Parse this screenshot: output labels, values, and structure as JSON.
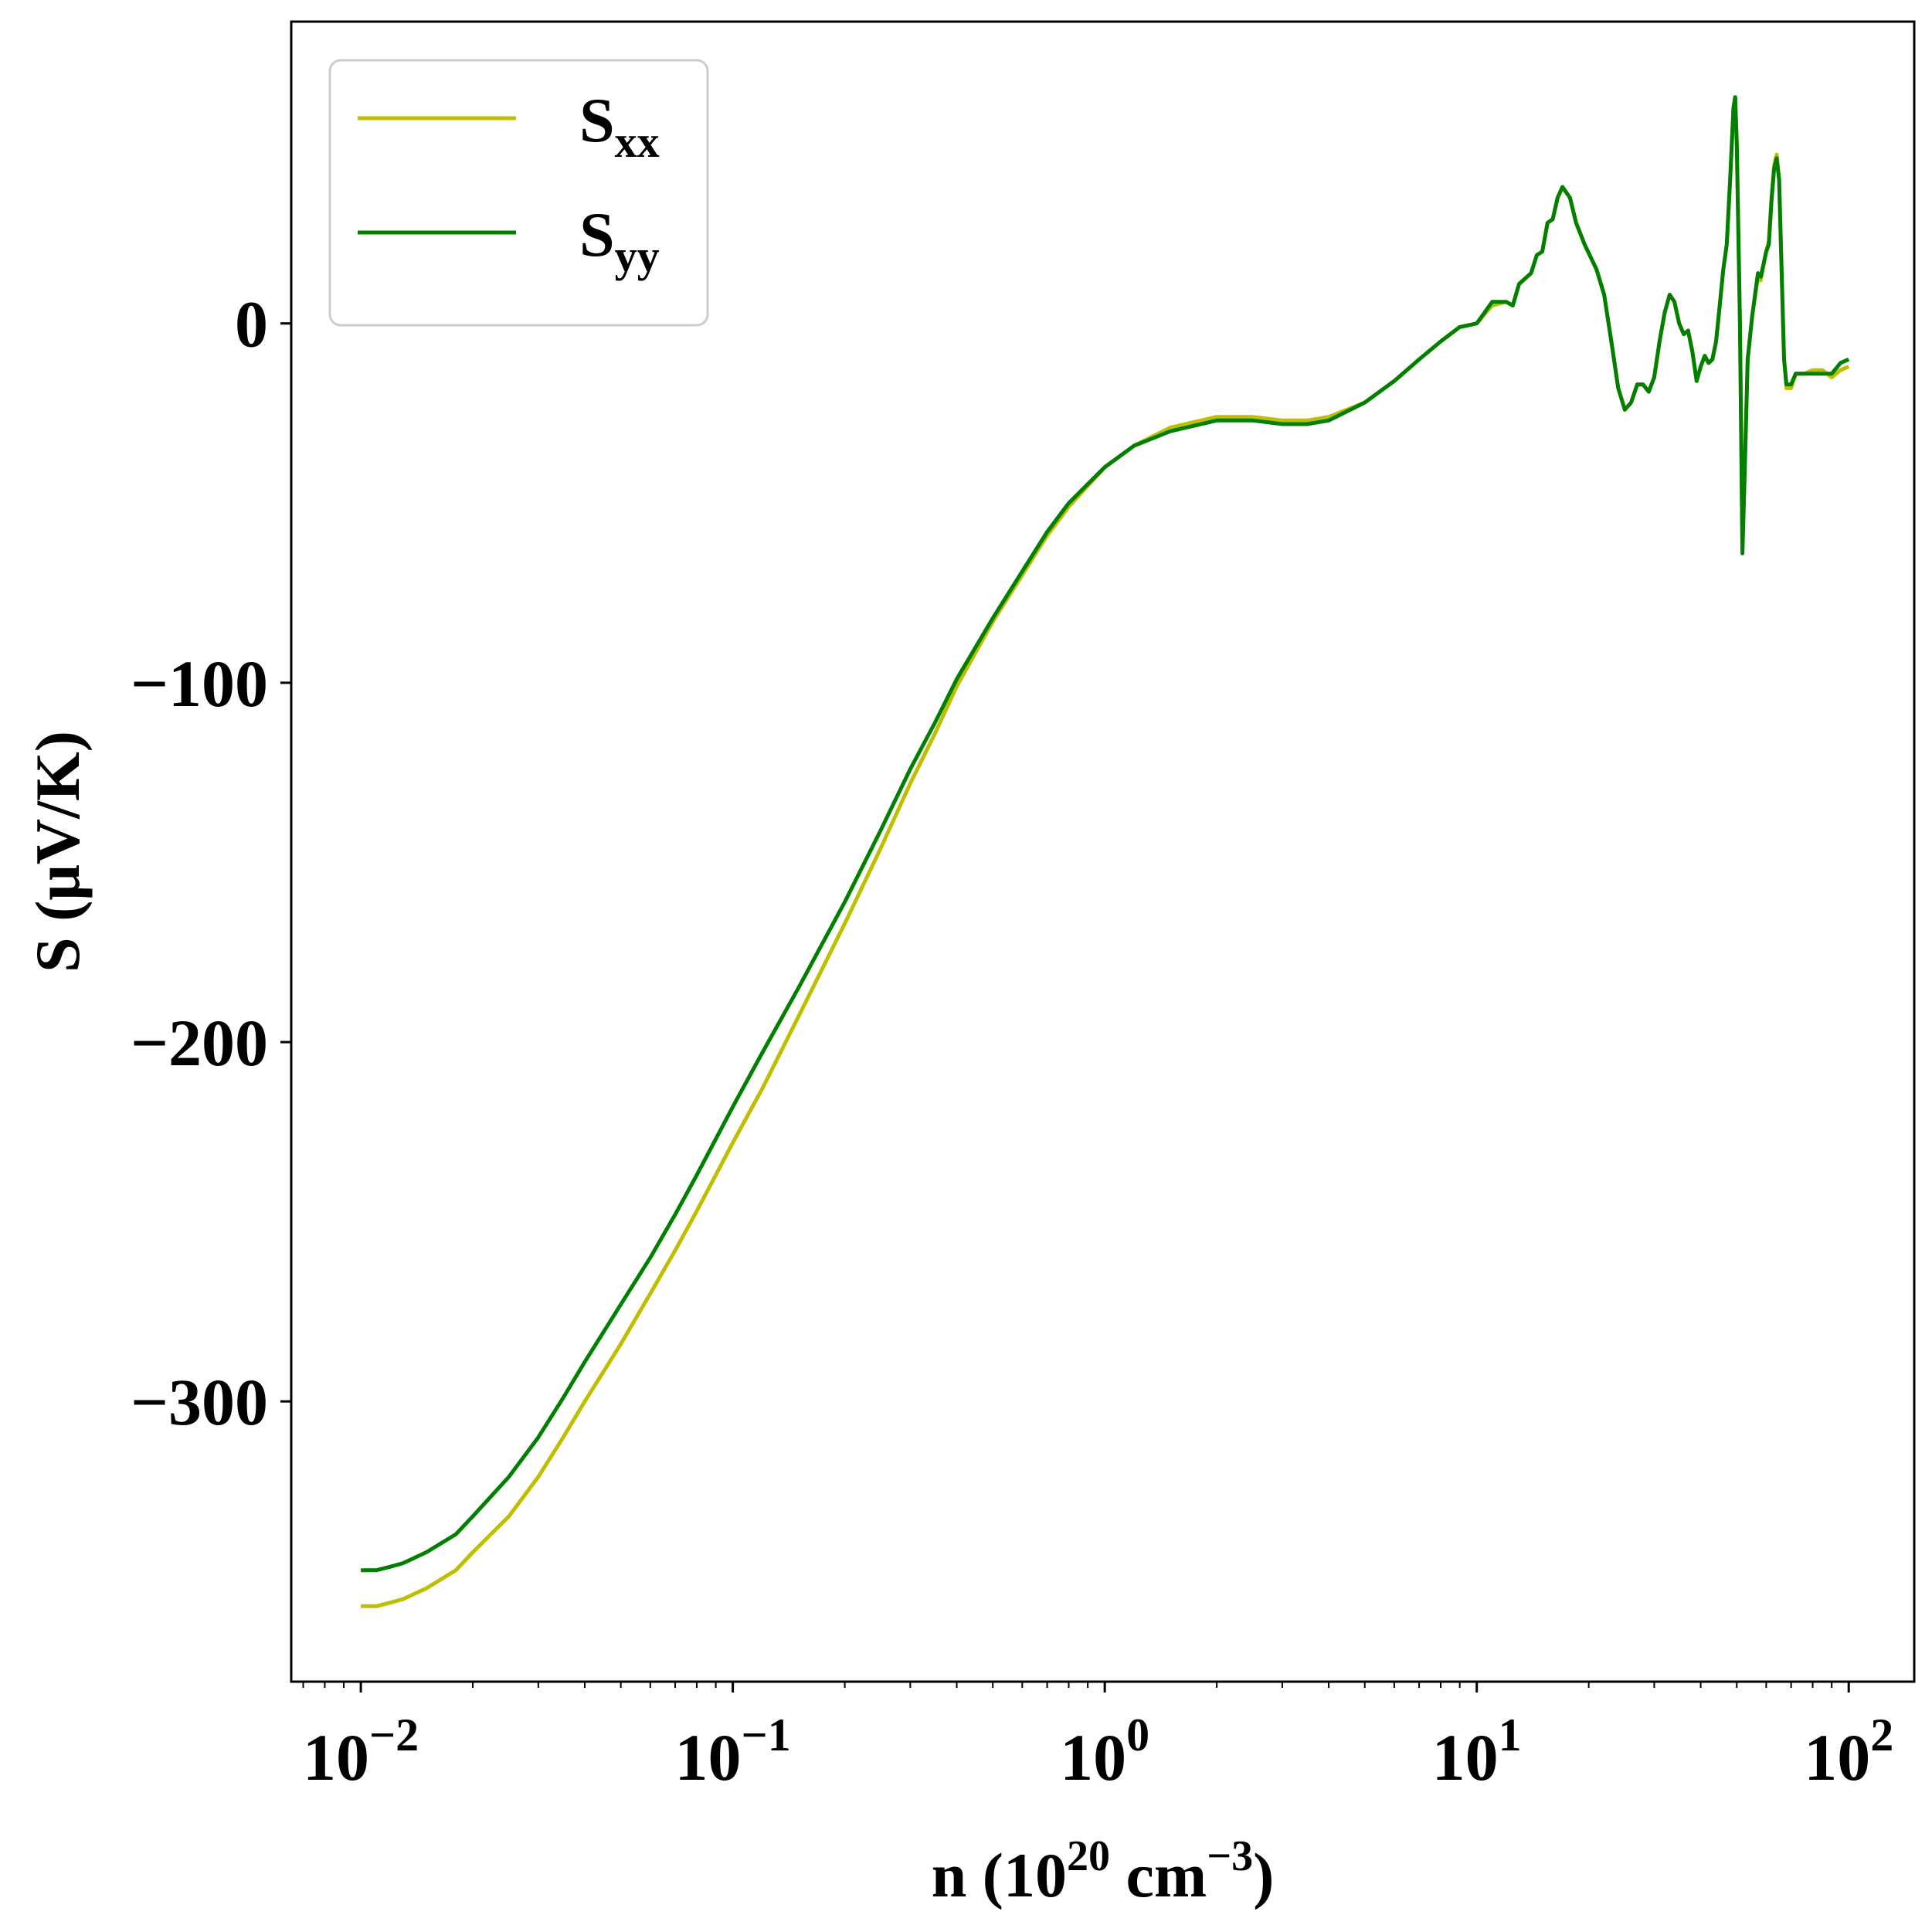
{
  "chart_data": {
    "type": "line",
    "xscale": "log",
    "xlim": [
      0.0065,
      150
    ],
    "ylim": [
      -378,
      84
    ],
    "xlabel": {
      "prefix": "n (10",
      "exp": "20",
      "middle": " cm",
      "exp2": "−3",
      "suffix": ")"
    },
    "ylabel": "S (μV/K)",
    "x_ticks": [
      {
        "value": 0.01,
        "base": "10",
        "exp": "−2"
      },
      {
        "value": 0.1,
        "base": "10",
        "exp": "−1"
      },
      {
        "value": 1,
        "base": "10",
        "exp": "0"
      },
      {
        "value": 10,
        "base": "10",
        "exp": "1"
      },
      {
        "value": 100,
        "base": "10",
        "exp": "2"
      }
    ],
    "y_ticks": [
      {
        "value": 0,
        "label": "0"
      },
      {
        "value": -100,
        "label": "−100"
      },
      {
        "value": -200,
        "label": "−200"
      },
      {
        "value": -300,
        "label": "−300"
      }
    ],
    "grid": false,
    "legend_position": "top-left",
    "series": [
      {
        "name": "S",
        "subscript": "xx",
        "color": "#bfbf00",
        "points": [
          [
            0.01,
            -357
          ],
          [
            0.011,
            -357
          ],
          [
            0.012,
            -356
          ],
          [
            0.013,
            -355
          ],
          [
            0.015,
            -352
          ],
          [
            0.018,
            -347
          ],
          [
            0.02,
            -342
          ],
          [
            0.025,
            -332
          ],
          [
            0.03,
            -321
          ],
          [
            0.035,
            -310
          ],
          [
            0.04,
            -300
          ],
          [
            0.05,
            -284
          ],
          [
            0.06,
            -270
          ],
          [
            0.07,
            -258
          ],
          [
            0.08,
            -247
          ],
          [
            0.09,
            -237
          ],
          [
            0.1,
            -228
          ],
          [
            0.12,
            -213
          ],
          [
            0.15,
            -193
          ],
          [
            0.2,
            -167
          ],
          [
            0.25,
            -146
          ],
          [
            0.3,
            -128
          ],
          [
            0.35,
            -114
          ],
          [
            0.4,
            -101
          ],
          [
            0.5,
            -83
          ],
          [
            0.6,
            -70
          ],
          [
            0.7,
            -59
          ],
          [
            0.8,
            -51
          ],
          [
            1.0,
            -40
          ],
          [
            1.2,
            -34
          ],
          [
            1.5,
            -29
          ],
          [
            2.0,
            -26
          ],
          [
            2.5,
            -26
          ],
          [
            3.0,
            -27
          ],
          [
            3.5,
            -27
          ],
          [
            4.0,
            -26
          ],
          [
            5.0,
            -22
          ],
          [
            6.0,
            -16
          ],
          [
            7.0,
            -10
          ],
          [
            8.0,
            -5
          ],
          [
            9.0,
            -1
          ],
          [
            10.0,
            0
          ],
          [
            11.0,
            5
          ],
          [
            12.0,
            6
          ],
          [
            12.5,
            5
          ],
          [
            13.0,
            11
          ],
          [
            14.0,
            14
          ],
          [
            14.5,
            19
          ],
          [
            15.0,
            20
          ],
          [
            15.5,
            28
          ],
          [
            16.0,
            29
          ],
          [
            16.5,
            35
          ],
          [
            17.0,
            38
          ],
          [
            17.8,
            35
          ],
          [
            18.5,
            28
          ],
          [
            19.5,
            22
          ],
          [
            21.0,
            15
          ],
          [
            22.0,
            8
          ],
          [
            23.0,
            -5
          ],
          [
            24.0,
            -18
          ],
          [
            25.0,
            -24
          ],
          [
            26.0,
            -22
          ],
          [
            27.0,
            -17
          ],
          [
            28.0,
            -17
          ],
          [
            29.0,
            -19
          ],
          [
            30.0,
            -15
          ],
          [
            31.0,
            -5
          ],
          [
            32.0,
            3
          ],
          [
            33.0,
            8
          ],
          [
            34.0,
            6
          ],
          [
            35.0,
            0
          ],
          [
            36.0,
            -3
          ],
          [
            37.0,
            -2
          ],
          [
            38.0,
            -8
          ],
          [
            39.0,
            -16
          ],
          [
            40.0,
            -12
          ],
          [
            41.0,
            -9
          ],
          [
            42.0,
            -11
          ],
          [
            43.0,
            -10
          ],
          [
            44.0,
            -5
          ],
          [
            45.0,
            5
          ],
          [
            46.0,
            15
          ],
          [
            47.0,
            22
          ],
          [
            48.0,
            40
          ],
          [
            49.0,
            60
          ],
          [
            49.5,
            63
          ],
          [
            50.0,
            50
          ],
          [
            51.0,
            0
          ],
          [
            51.8,
            -62
          ],
          [
            52.5,
            -40
          ],
          [
            53.5,
            -10
          ],
          [
            55.0,
            2
          ],
          [
            57.0,
            13
          ],
          [
            58.0,
            12
          ],
          [
            60.0,
            20
          ],
          [
            61.0,
            23
          ],
          [
            62.0,
            35
          ],
          [
            63.0,
            44
          ],
          [
            64.0,
            47
          ],
          [
            65.0,
            40
          ],
          [
            66.0,
            15
          ],
          [
            67.0,
            -10
          ],
          [
            68.0,
            -18
          ],
          [
            70.0,
            -18
          ],
          [
            72.0,
            -14
          ],
          [
            76.0,
            -14
          ],
          [
            80.0,
            -13
          ],
          [
            85.0,
            -13
          ],
          [
            90.0,
            -15
          ],
          [
            95.0,
            -13
          ],
          [
            100.0,
            -12
          ]
        ]
      },
      {
        "name": "S",
        "subscript": "yy",
        "color": "#007f00",
        "points": [
          [
            0.01,
            -347
          ],
          [
            0.011,
            -347
          ],
          [
            0.012,
            -346
          ],
          [
            0.013,
            -345
          ],
          [
            0.015,
            -342
          ],
          [
            0.018,
            -337
          ],
          [
            0.02,
            -332
          ],
          [
            0.025,
            -321
          ],
          [
            0.03,
            -310
          ],
          [
            0.035,
            -299
          ],
          [
            0.04,
            -289
          ],
          [
            0.05,
            -273
          ],
          [
            0.06,
            -260
          ],
          [
            0.07,
            -248
          ],
          [
            0.08,
            -237
          ],
          [
            0.09,
            -227
          ],
          [
            0.1,
            -218
          ],
          [
            0.12,
            -203
          ],
          [
            0.15,
            -185
          ],
          [
            0.2,
            -161
          ],
          [
            0.25,
            -141
          ],
          [
            0.3,
            -124
          ],
          [
            0.35,
            -111
          ],
          [
            0.4,
            -99
          ],
          [
            0.5,
            -82
          ],
          [
            0.6,
            -69
          ],
          [
            0.7,
            -58
          ],
          [
            0.8,
            -50
          ],
          [
            1.0,
            -40
          ],
          [
            1.2,
            -34
          ],
          [
            1.5,
            -30
          ],
          [
            2.0,
            -27
          ],
          [
            2.5,
            -27
          ],
          [
            3.0,
            -28
          ],
          [
            3.5,
            -28
          ],
          [
            4.0,
            -27
          ],
          [
            5.0,
            -22
          ],
          [
            6.0,
            -16
          ],
          [
            7.0,
            -10
          ],
          [
            8.0,
            -5
          ],
          [
            9.0,
            -1
          ],
          [
            10.0,
            0
          ],
          [
            11.0,
            6
          ],
          [
            12.0,
            6
          ],
          [
            12.5,
            5
          ],
          [
            13.0,
            11
          ],
          [
            14.0,
            14
          ],
          [
            14.5,
            19
          ],
          [
            15.0,
            20
          ],
          [
            15.5,
            28
          ],
          [
            16.0,
            29
          ],
          [
            16.5,
            35
          ],
          [
            17.0,
            38
          ],
          [
            17.8,
            35
          ],
          [
            18.5,
            28
          ],
          [
            19.5,
            22
          ],
          [
            21.0,
            15
          ],
          [
            22.0,
            8
          ],
          [
            23.0,
            -5
          ],
          [
            24.0,
            -18
          ],
          [
            25.0,
            -24
          ],
          [
            26.0,
            -22
          ],
          [
            27.0,
            -17
          ],
          [
            28.0,
            -17
          ],
          [
            29.0,
            -19
          ],
          [
            30.0,
            -15
          ],
          [
            31.0,
            -5
          ],
          [
            32.0,
            3
          ],
          [
            33.0,
            8
          ],
          [
            34.0,
            6
          ],
          [
            35.0,
            0
          ],
          [
            36.0,
            -3
          ],
          [
            37.0,
            -2
          ],
          [
            38.0,
            -8
          ],
          [
            39.0,
            -16
          ],
          [
            40.0,
            -12
          ],
          [
            41.0,
            -9
          ],
          [
            42.0,
            -11
          ],
          [
            43.0,
            -10
          ],
          [
            44.0,
            -5
          ],
          [
            45.0,
            5
          ],
          [
            46.0,
            15
          ],
          [
            47.0,
            22
          ],
          [
            48.0,
            40
          ],
          [
            49.0,
            60
          ],
          [
            49.5,
            63
          ],
          [
            50.0,
            50
          ],
          [
            51.0,
            0
          ],
          [
            51.8,
            -64
          ],
          [
            52.5,
            -42
          ],
          [
            53.5,
            -10
          ],
          [
            55.0,
            2
          ],
          [
            57.0,
            14
          ],
          [
            58.0,
            13
          ],
          [
            60.0,
            20
          ],
          [
            61.0,
            22
          ],
          [
            62.0,
            34
          ],
          [
            63.0,
            43
          ],
          [
            64.0,
            46
          ],
          [
            65.0,
            40
          ],
          [
            66.0,
            15
          ],
          [
            67.0,
            -10
          ],
          [
            68.0,
            -17
          ],
          [
            70.0,
            -17
          ],
          [
            72.0,
            -14
          ],
          [
            76.0,
            -14
          ],
          [
            80.0,
            -14
          ],
          [
            85.0,
            -14
          ],
          [
            90.0,
            -14
          ],
          [
            95.0,
            -11
          ],
          [
            100.0,
            -10
          ]
        ]
      }
    ]
  }
}
